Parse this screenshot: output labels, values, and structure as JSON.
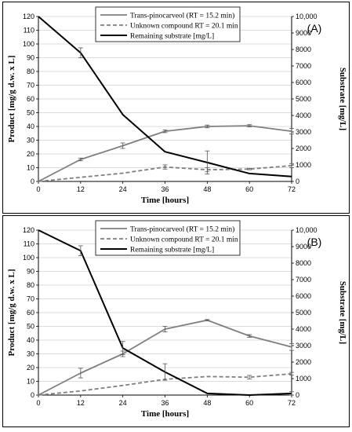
{
  "chart_data": [
    {
      "type": "line",
      "panel_label": "(A)",
      "xlabel": "Time [hours]",
      "ylabel": "Product [mg/g d.w. x L]",
      "ylabel_right": "Substrate [mg/L]",
      "x": [
        0,
        12,
        24,
        36,
        48,
        60,
        72
      ],
      "x_ticks": [
        "0",
        "12",
        "24",
        "36",
        "48",
        "60",
        "72"
      ],
      "ylim": [
        0,
        120
      ],
      "y_ticks": [
        "0",
        "10",
        "20",
        "30",
        "40",
        "50",
        "60",
        "70",
        "80",
        "90",
        "100",
        "110",
        "120"
      ],
      "ylim_right": [
        0,
        10000
      ],
      "y_ticks_right": [
        "0",
        "1000",
        "2000",
        "3000",
        "4000",
        "5000",
        "6000",
        "7000",
        "8000",
        "9000",
        "10,000"
      ],
      "grid": true,
      "legend": "top-center",
      "series": [
        {
          "name": "Trans-pinocarveol (RT = 15.2 min)",
          "axis": "left",
          "color": "#7f7f7f",
          "dash": "solid",
          "values": [
            0,
            16,
            26,
            36.5,
            40,
            40.5,
            36.5
          ],
          "errors": [
            0,
            1,
            2,
            1,
            1,
            0.8,
            2
          ]
        },
        {
          "name": "Unknown compound RT = 20.1 min",
          "axis": "left",
          "color": "#7f7f7f",
          "dash": "dashed",
          "values": [
            0,
            3,
            6,
            10.5,
            8.5,
            9,
            11.5
          ],
          "errors": [
            0,
            0,
            0,
            1.5,
            1.5,
            0.5,
            1.5
          ]
        },
        {
          "name": "Remaining substrate [mg/L]",
          "axis": "right",
          "color": "#000000",
          "dash": "solid",
          "values": [
            10000,
            7800,
            4050,
            1800,
            1150,
            480,
            300
          ],
          "errors": [
            0,
            300,
            0,
            0,
            700,
            0,
            0
          ]
        }
      ]
    },
    {
      "type": "line",
      "panel_label": "(B)",
      "xlabel": "Time [hours]",
      "ylabel": "Product [mg/g d.w. x L]",
      "ylabel_right": "Substrate [mg/L]",
      "x": [
        0,
        12,
        24,
        36,
        48,
        60,
        72
      ],
      "x_ticks": [
        "0",
        "12",
        "24",
        "36",
        "48",
        "60",
        "72"
      ],
      "ylim": [
        0,
        120
      ],
      "y_ticks": [
        "0",
        "10",
        "20",
        "30",
        "40",
        "50",
        "60",
        "70",
        "80",
        "90",
        "100",
        "110",
        "120"
      ],
      "ylim_right": [
        0,
        10000
      ],
      "y_ticks_right": [
        "0",
        "1000",
        "2000",
        "3000",
        "4000",
        "5000",
        "6000",
        "7000",
        "8000",
        "9000",
        "10,000"
      ],
      "grid": true,
      "legend": "top-center",
      "series": [
        {
          "name": "Trans-pinocarveol (RT = 15.2 min)",
          "axis": "left",
          "color": "#7f7f7f",
          "dash": "solid",
          "values": [
            0,
            16,
            30,
            48,
            54.5,
            43,
            35
          ],
          "errors": [
            0,
            3.5,
            2,
            2,
            0.5,
            1,
            2.5
          ]
        },
        {
          "name": "Unknown compound RT = 20.1 min",
          "axis": "left",
          "color": "#7f7f7f",
          "dash": "dashed",
          "values": [
            0,
            3,
            7,
            11.5,
            13.5,
            13,
            15.5
          ],
          "errors": [
            0,
            0,
            0,
            0,
            0,
            1.3,
            1
          ]
        },
        {
          "name": "Remaining substrate [mg/L]",
          "axis": "right",
          "color": "#000000",
          "dash": "solid",
          "values": [
            10000,
            8750,
            2850,
            1400,
            100,
            0,
            100
          ],
          "errors": [
            0,
            300,
            400,
            500,
            0,
            0,
            100
          ]
        }
      ]
    }
  ]
}
